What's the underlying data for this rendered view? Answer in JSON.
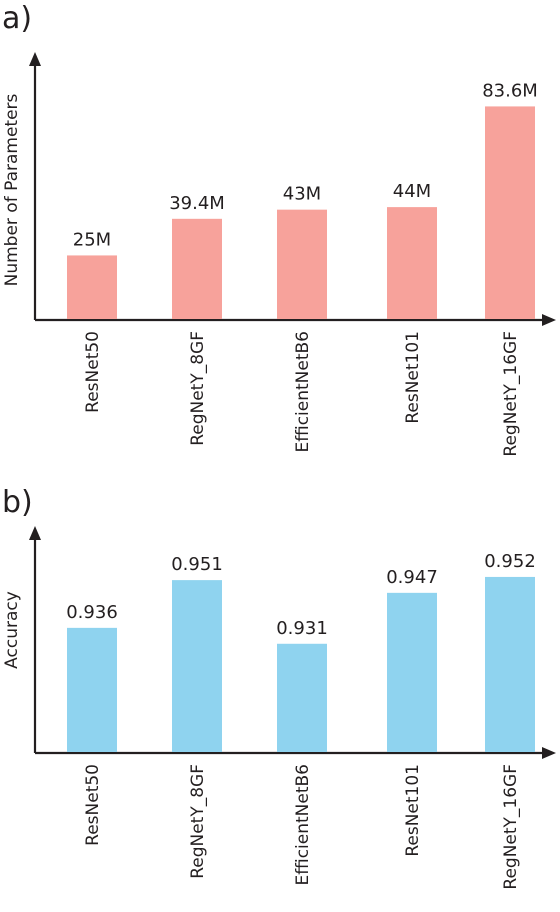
{
  "chart_data": [
    {
      "type": "bar",
      "panel_label": "a)",
      "ylabel": "Number of Parameters",
      "categories": [
        "ResNet50",
        "RegNetY_8GF",
        "EfficientNetB6",
        "ResNet101",
        "RegNetY_16GF"
      ],
      "values": [
        25,
        39.4,
        43,
        44,
        83.6
      ],
      "data_labels": [
        "25M",
        "39.4M",
        "43M",
        "44M",
        "83.6M"
      ],
      "ylim": [
        0,
        105
      ],
      "bar_color": "#f7a29b",
      "grid": false
    },
    {
      "type": "bar",
      "panel_label": "b)",
      "ylabel": "Accuracy",
      "categories": [
        "ResNet50",
        "RegNetY_8GF",
        "EfficientNetB6",
        "ResNet101",
        "RegNetY_16GF"
      ],
      "values": [
        0.936,
        0.951,
        0.931,
        0.947,
        0.952
      ],
      "data_labels": [
        "0.936",
        "0.951",
        "0.931",
        "0.947",
        "0.952"
      ],
      "ylim": [
        0.897,
        0.968
      ],
      "bar_color": "#8fd3ef",
      "grid": false
    }
  ]
}
